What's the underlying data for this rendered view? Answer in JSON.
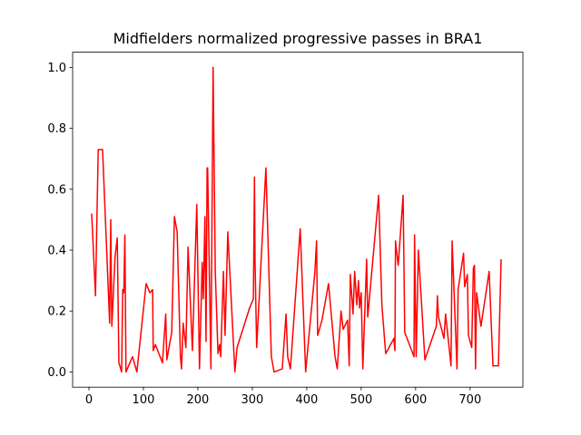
{
  "chart_data": {
    "type": "line",
    "title": "Midfielders normalized progressive passes in BRA1",
    "x": [
      5,
      12,
      17,
      25,
      38,
      40,
      42,
      48,
      52,
      55,
      60,
      62,
      64,
      66,
      68,
      80,
      88,
      105,
      112,
      117,
      118,
      122,
      135,
      141,
      143,
      152,
      157,
      162,
      168,
      170,
      173,
      178,
      182,
      190,
      198,
      203,
      208,
      210,
      213,
      215,
      217,
      218,
      224,
      228,
      232,
      237,
      240,
      242,
      247,
      250,
      255,
      268,
      272,
      295,
      302,
      304,
      305,
      308,
      325,
      335,
      340,
      355,
      362,
      365,
      370,
      388,
      398,
      415,
      418,
      420,
      428,
      440,
      452,
      456,
      463,
      467,
      475,
      478,
      480,
      485,
      488,
      492,
      495,
      497,
      500,
      503,
      510,
      512,
      532,
      538,
      545,
      560,
      562,
      563,
      568,
      577,
      580,
      597,
      598,
      601,
      605,
      617,
      638,
      640,
      642,
      652,
      655,
      665,
      667,
      676,
      678,
      688,
      690,
      695,
      697,
      703,
      706,
      708,
      710,
      712,
      720,
      735,
      742,
      752,
      757
    ],
    "series": [
      {
        "name": "progressive passes",
        "color": "#ff0000",
        "values": [
          0.52,
          0.25,
          0.73,
          0.73,
          0.16,
          0.5,
          0.15,
          0.38,
          0.44,
          0.03,
          0,
          0.27,
          0.26,
          0.45,
          0,
          0.05,
          0,
          0.29,
          0.26,
          0.27,
          0.07,
          0.09,
          0.03,
          0.19,
          0.04,
          0.13,
          0.51,
          0.46,
          0.05,
          0.01,
          0.16,
          0.08,
          0.41,
          0.07,
          0.55,
          0.01,
          0.36,
          0.24,
          0.51,
          0.1,
          0.67,
          0.67,
          0.01,
          1.0,
          0.33,
          0.06,
          0.09,
          0.05,
          0.33,
          0.12,
          0.46,
          0,
          0.08,
          0.21,
          0.24,
          0.64,
          0.37,
          0.08,
          0.67,
          0.05,
          0,
          0.01,
          0.19,
          0.05,
          0.01,
          0.47,
          0,
          0.33,
          0.43,
          0.12,
          0.17,
          0.29,
          0.05,
          0.01,
          0.2,
          0.14,
          0.17,
          0.02,
          0.32,
          0.19,
          0.33,
          0.22,
          0.3,
          0.21,
          0.26,
          0.01,
          0.37,
          0.18,
          0.58,
          0.22,
          0.06,
          0.11,
          0.07,
          0.43,
          0.35,
          0.58,
          0.13,
          0.05,
          0.45,
          0.05,
          0.4,
          0.04,
          0.15,
          0.25,
          0.18,
          0.11,
          0.19,
          0.02,
          0.43,
          0.01,
          0.27,
          0.39,
          0.28,
          0.32,
          0.12,
          0.08,
          0.34,
          0.35,
          0.01,
          0.26,
          0.15,
          0.33,
          0.02,
          0.02,
          0.37
        ]
      }
    ],
    "xlim": [
      -30,
      797
    ],
    "ylim": [
      -0.05,
      1.05
    ],
    "xticks": [
      0,
      100,
      200,
      300,
      400,
      500,
      600,
      700
    ],
    "yticks": [
      {
        "value": 0,
        "label": "0.0"
      },
      0.2,
      0.4,
      0.6,
      0.8,
      {
        "value": 1,
        "label": "1.0"
      }
    ]
  }
}
